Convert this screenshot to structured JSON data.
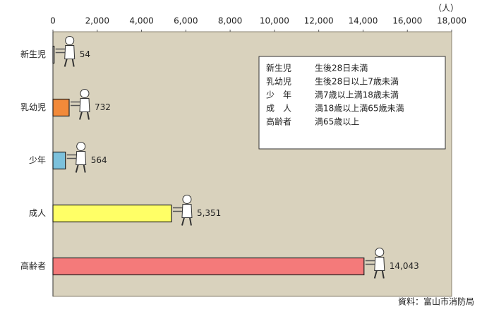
{
  "chart_data": {
    "type": "hbar",
    "unit_label": "（人）",
    "categories": [
      "新生児",
      "乳幼児",
      "少年",
      "成人",
      "高齢者"
    ],
    "values": [
      54,
      732,
      564,
      5351,
      14043
    ],
    "value_labels": [
      "54",
      "732",
      "564",
      "5,351",
      "14,043"
    ],
    "colors": [
      "#ffffff",
      "#f28a3a",
      "#7cc1dc",
      "#ffff66",
      "#f47a7a"
    ],
    "xlim": [
      0,
      18000
    ],
    "xticks": [
      0,
      {
        "value": 2000,
        "label": "2,000"
      },
      {
        "value": 4000,
        "label": "4,000"
      },
      {
        "value": 6000,
        "label": "6,000"
      },
      {
        "value": 8000,
        "label": "8,000"
      },
      {
        "value": 10000,
        "label": "10,000"
      },
      {
        "value": 12000,
        "label": "12,000"
      },
      {
        "value": 14000,
        "label": "14,000"
      },
      {
        "value": 16000,
        "label": "16,000"
      },
      {
        "value": 18000,
        "label": "18,000"
      }
    ],
    "legend_box": [
      {
        "term": "新生児",
        "text": "生後28日未満"
      },
      {
        "term": "乳幼児",
        "text": "生後28日以上7歳未満"
      },
      {
        "term": "少　年",
        "text": "満7歳以上満18歳未満"
      },
      {
        "term": "成　人",
        "text": "満18歳以上満65歳未満"
      },
      {
        "term": "高齢者",
        "text": "満65歳以上"
      }
    ],
    "source": "資料：富山市消防局"
  }
}
